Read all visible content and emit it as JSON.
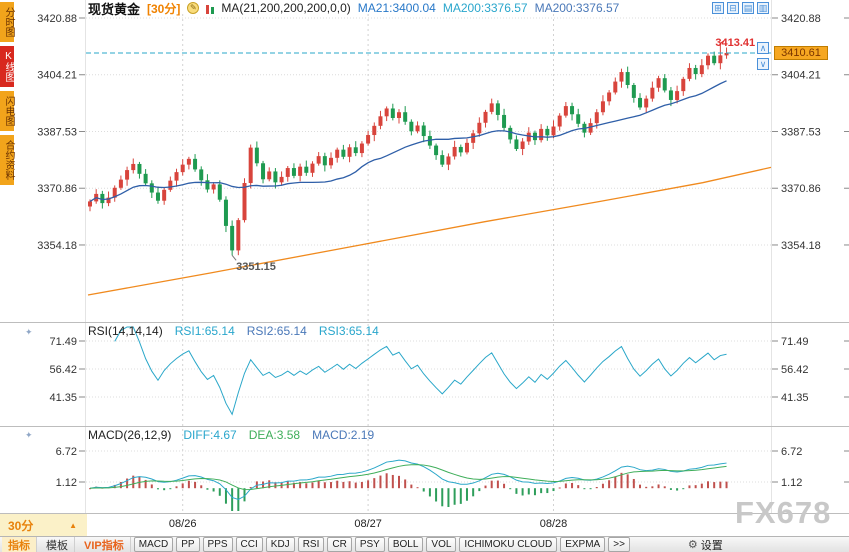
{
  "watermark": "FX678",
  "sidebar": {
    "tabs": [
      {
        "label": "分时图",
        "active": false
      },
      {
        "label": "K线图",
        "active": true
      },
      {
        "label": "闪电图",
        "active": false
      },
      {
        "label": "合约资料",
        "active": false
      }
    ]
  },
  "header": {
    "symbol": "现货黄金",
    "interval": "[30分]",
    "edit_icon": "✎",
    "ma_label": "MA(21,200,200,200,0,0)",
    "ma1": "MA21:3400.04",
    "ma2": "MA200:3376.57",
    "ma3": "MA200:3376.57",
    "window_icons": [
      {
        "glyph": "⊞"
      },
      {
        "glyph": "⊟"
      },
      {
        "glyph": "▤"
      },
      {
        "glyph": "▥"
      }
    ],
    "side_icons": [
      {
        "glyph": "∧"
      },
      {
        "glyph": "∨"
      }
    ]
  },
  "labels": {
    "high": "3413.41",
    "low": "3351.15",
    "last": "3410.61"
  },
  "axes": {
    "main": [
      "3420.88",
      "3404.21",
      "3387.53",
      "3370.86",
      "3354.18"
    ]
  },
  "panels": {
    "rsi": {
      "icon": "✦",
      "title": "RSI(14,14,14)",
      "v1": "RSI1:65.14",
      "v2": "RSI2:65.14",
      "v3": "RSI3:65.14",
      "axis": [
        "71.49",
        "56.42",
        "41.35"
      ]
    },
    "macd": {
      "icon": "✦",
      "title": "MACD(26,12,9)",
      "v1": "DIFF:4.67",
      "v2": "DEA:3.58",
      "v3": "MACD:2.19",
      "axis": [
        "6.72",
        "1.12"
      ]
    }
  },
  "x_axis": {
    "interval": "30分",
    "interval_arrow": "▲",
    "labels": [
      "08/26",
      "08/27",
      "08/28"
    ]
  },
  "toolbar": {
    "tabs": [
      "指标",
      "模板",
      "VIP指标"
    ],
    "buttons": [
      "MACD",
      "PP",
      "PPS",
      "CCI",
      "KDJ",
      "RSI",
      "CR",
      "PSY",
      "BOLL",
      "VOL",
      "ICHIMOKU CLOUD",
      "EXPMA",
      ">>"
    ],
    "settings_icon": "⚙",
    "settings": "设置"
  },
  "chart_data": {
    "type": "candlestick",
    "symbol": "现货黄金",
    "interval": "30min",
    "y_ticks": [
      3420.88,
      3404.21,
      3387.53,
      3370.86,
      3354.18
    ],
    "rsi_ticks": [
      71.49,
      56.42,
      41.35
    ],
    "macd_ticks": [
      6.72,
      1.12
    ],
    "high": 3413.41,
    "low": 3351.15,
    "last": 3410.61,
    "ma21_last": 3400.04,
    "ma200_last": 3376.57,
    "rsi_last": 65.14,
    "diff_last": 4.67,
    "dea_last": 3.58,
    "macd_last": 2.19,
    "first_open": 3365.5,
    "closes": [
      3367.0,
      3369.2,
      3366.5,
      3368.1,
      3371.0,
      3373.4,
      3376.2,
      3378.0,
      3375.1,
      3372.3,
      3369.6,
      3367.2,
      3370.4,
      3373.1,
      3375.6,
      3377.8,
      3379.5,
      3376.4,
      3373.2,
      3370.5,
      3372.0,
      3367.5,
      3359.8,
      3352.6,
      3361.5,
      3372.4,
      3382.8,
      3378.2,
      3373.5,
      3375.8,
      3372.6,
      3374.2,
      3376.8,
      3374.5,
      3377.2,
      3375.4,
      3378.1,
      3380.3,
      3377.6,
      3379.8,
      3382.2,
      3380.1,
      3382.9,
      3381.2,
      3384.0,
      3386.5,
      3389.2,
      3392.0,
      3394.3,
      3391.5,
      3393.2,
      3390.4,
      3387.6,
      3389.3,
      3386.2,
      3383.4,
      3380.6,
      3377.8,
      3380.2,
      3383.0,
      3381.4,
      3384.2,
      3387.0,
      3390.1,
      3393.3,
      3395.8,
      3392.4,
      3388.6,
      3385.2,
      3382.4,
      3384.6,
      3387.2,
      3385.0,
      3388.3,
      3386.4,
      3389.0,
      3392.2,
      3395.0,
      3392.6,
      3389.8,
      3387.2,
      3390.0,
      3393.2,
      3396.4,
      3399.0,
      3402.2,
      3405.0,
      3401.2,
      3397.4,
      3394.6,
      3397.2,
      3400.4,
      3403.2,
      3399.6,
      3396.8,
      3399.4,
      3403.0,
      3406.2,
      3404.4,
      3407.0,
      3409.8,
      3407.6,
      3409.9,
      3410.61
    ],
    "wick_pattern": [
      0.6,
      1.4,
      0.9,
      1.8,
      0.7,
      1.2,
      1.0,
      1.6
    ],
    "special": {
      "low_index": 23,
      "high_index": 102
    },
    "day_start_indices": [
      15,
      45,
      75
    ],
    "ma200_waypoints": [
      [
        0,
        3339.5
      ],
      [
        0.18,
        3346.0
      ],
      [
        0.38,
        3353.5
      ],
      [
        0.58,
        3361.0
      ],
      [
        0.75,
        3367.0
      ],
      [
        0.9,
        3372.5
      ],
      [
        1,
        3377.0
      ]
    ],
    "colors": {
      "up": "#D8443C",
      "down": "#1E9A50",
      "ma21": "#2F5FA8",
      "ma200": "#F08A1E",
      "rsi": "#2AA7C9",
      "diff": "#2AA7C9",
      "dea": "#3FAE5A",
      "hist_pos": "#C0504D",
      "hist_neg": "#2E9E5B",
      "price_line": "#2AA7C9"
    }
  }
}
